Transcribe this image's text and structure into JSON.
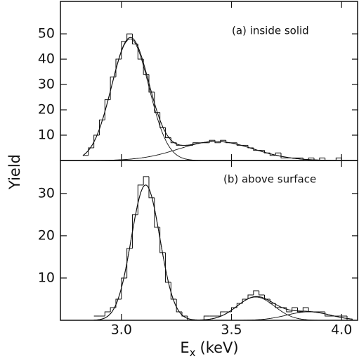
{
  "ylabel": "Yield",
  "xlabel": {
    "main": "E",
    "sub": "x",
    "rest": "(keV)"
  },
  "chart_data": [
    {
      "type": "histogram",
      "label": "(a)  inside solid",
      "bins": [
        2.825,
        2.85,
        2.875,
        2.9,
        2.925,
        2.95,
        2.975,
        3.0,
        3.025,
        3.05,
        3.075,
        3.1,
        3.125,
        3.15,
        3.175,
        3.2,
        3.225,
        3.25,
        3.275,
        3.3,
        3.325,
        3.35,
        3.375,
        3.4,
        3.425,
        3.45,
        3.475,
        3.5,
        3.525,
        3.55,
        3.575,
        3.6,
        3.625,
        3.65,
        3.675,
        3.7,
        3.725,
        3.75,
        3.775,
        3.8,
        3.825,
        3.85,
        3.875,
        3.9,
        3.925,
        3.95,
        3.975,
        4.0,
        4.025,
        4.05
      ],
      "counts": [
        2,
        5,
        10,
        16,
        24,
        33,
        40,
        47,
        50,
        46,
        40,
        34,
        27,
        19,
        13,
        9,
        7,
        6,
        6,
        6,
        7,
        7,
        7,
        8,
        7,
        8,
        7,
        7,
        6,
        6,
        5,
        4,
        4,
        3,
        2,
        3,
        1,
        1,
        1,
        1,
        0,
        1,
        0,
        1,
        0,
        0,
        1,
        0,
        0
      ],
      "fits": [
        {
          "center": 3.04,
          "height": 48,
          "sigma": 0.085
        },
        {
          "center": 3.43,
          "height": 7.5,
          "sigma": 0.17
        }
      ],
      "xlim": [
        2.723,
        4.076
      ],
      "xticks": [
        3.0,
        3.5,
        4.0
      ],
      "ylim": [
        0,
        62.8
      ],
      "yticks": [
        10,
        20,
        30,
        40,
        50
      ]
    },
    {
      "type": "histogram",
      "label": "(b)  above surface",
      "bins": [
        2.875,
        2.9,
        2.925,
        2.95,
        2.975,
        3.0,
        3.025,
        3.05,
        3.075,
        3.1,
        3.125,
        3.15,
        3.175,
        3.2,
        3.225,
        3.25,
        3.275,
        3.3,
        3.325,
        3.35,
        3.375,
        3.4,
        3.425,
        3.45,
        3.475,
        3.5,
        3.525,
        3.55,
        3.575,
        3.6,
        3.625,
        3.65,
        3.675,
        3.7,
        3.725,
        3.75,
        3.775,
        3.8,
        3.825,
        3.85,
        3.875,
        3.9,
        3.925,
        3.95,
        3.975,
        4.0,
        4.025,
        4.05
      ],
      "counts": [
        1,
        1,
        2,
        3,
        5,
        10,
        17,
        25,
        32,
        34,
        29,
        22,
        16,
        9,
        5,
        2,
        1,
        0,
        0,
        0,
        1,
        1,
        1,
        2,
        2,
        3,
        4,
        5,
        6,
        7,
        6,
        5,
        4,
        3,
        3,
        2,
        3,
        2,
        3,
        2,
        2,
        2,
        1,
        1,
        1,
        1,
        0
      ],
      "fits": [
        {
          "center": 3.11,
          "height": 32,
          "sigma": 0.065
        },
        {
          "center": 3.61,
          "height": 5.5,
          "sigma": 0.085
        },
        {
          "center": 3.85,
          "height": 2,
          "sigma": 0.1
        }
      ],
      "xlim": [
        2.723,
        4.076
      ],
      "xticks": [
        {
          "value": 3.0,
          "label": "3.0"
        },
        {
          "value": 3.5,
          "label": "3.5"
        },
        {
          "value": 4.0,
          "label": "4.0"
        }
      ],
      "ylim": [
        0,
        37.8
      ],
      "yticks": [
        10,
        20,
        30
      ]
    }
  ]
}
